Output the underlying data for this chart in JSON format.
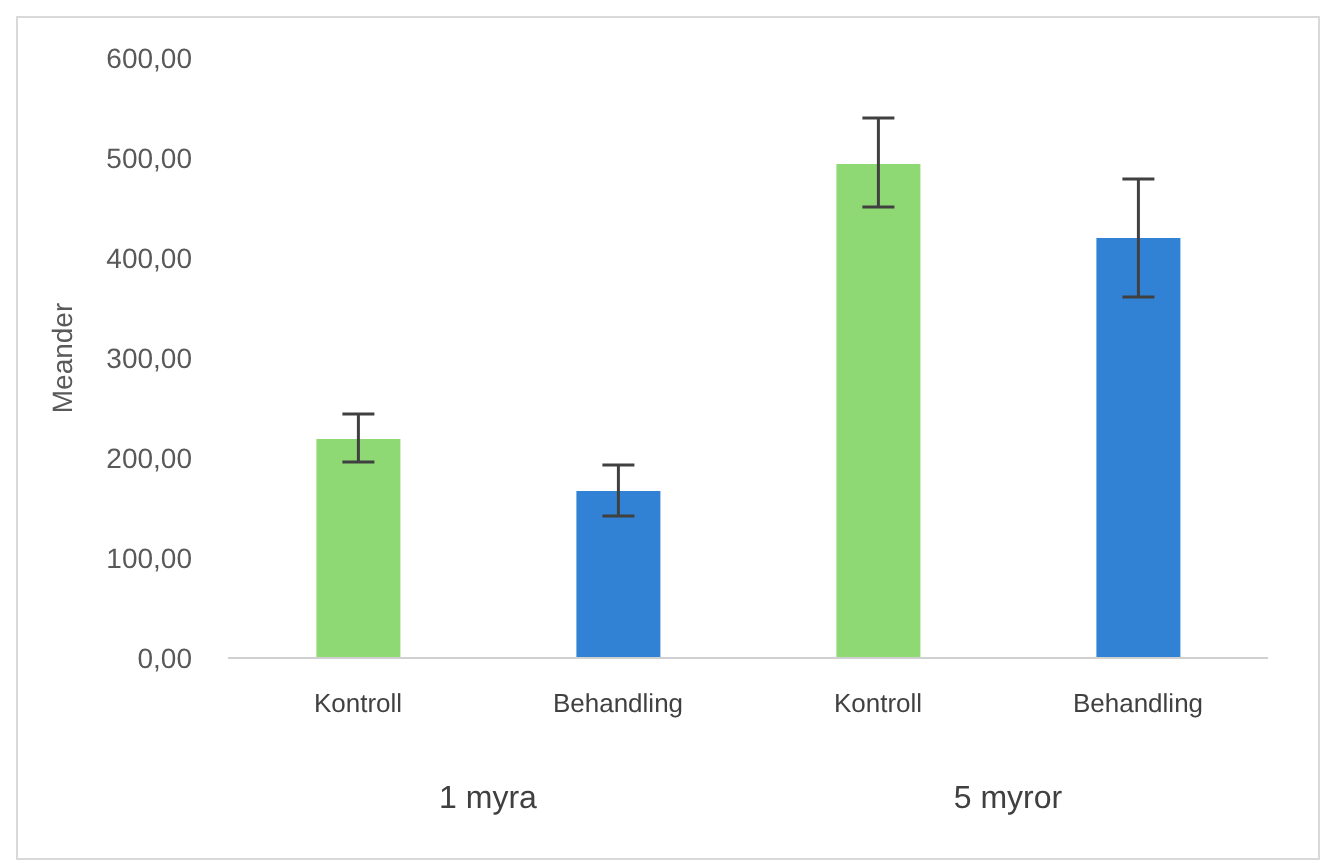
{
  "chart_data": {
    "type": "bar",
    "ylabel": "Meander",
    "categories": [
      "Kontroll",
      "Behandling",
      "Kontroll",
      "Behandling"
    ],
    "values": [
      219,
      167,
      494,
      420
    ],
    "colors": [
      "#8fd974",
      "#3182d4",
      "#8fd974",
      "#3182d4"
    ],
    "errors": [
      [
        196,
        244
      ],
      [
        142,
        193
      ],
      [
        451,
        540
      ],
      [
        361,
        479
      ]
    ],
    "ylim": [
      0,
      600
    ],
    "yticks": [
      {
        "value": 0,
        "label": "0,00"
      },
      {
        "value": 100,
        "label": "100,00"
      },
      {
        "value": 200,
        "label": "200,00"
      },
      {
        "value": 300,
        "label": "300,00"
      },
      {
        "value": 400,
        "label": "400,00"
      },
      {
        "value": 500,
        "label": "500,00"
      },
      {
        "value": 600,
        "label": "600,00"
      }
    ],
    "grid": false,
    "legend": false,
    "annotations": [
      "1 myra",
      "5 myror"
    ]
  }
}
